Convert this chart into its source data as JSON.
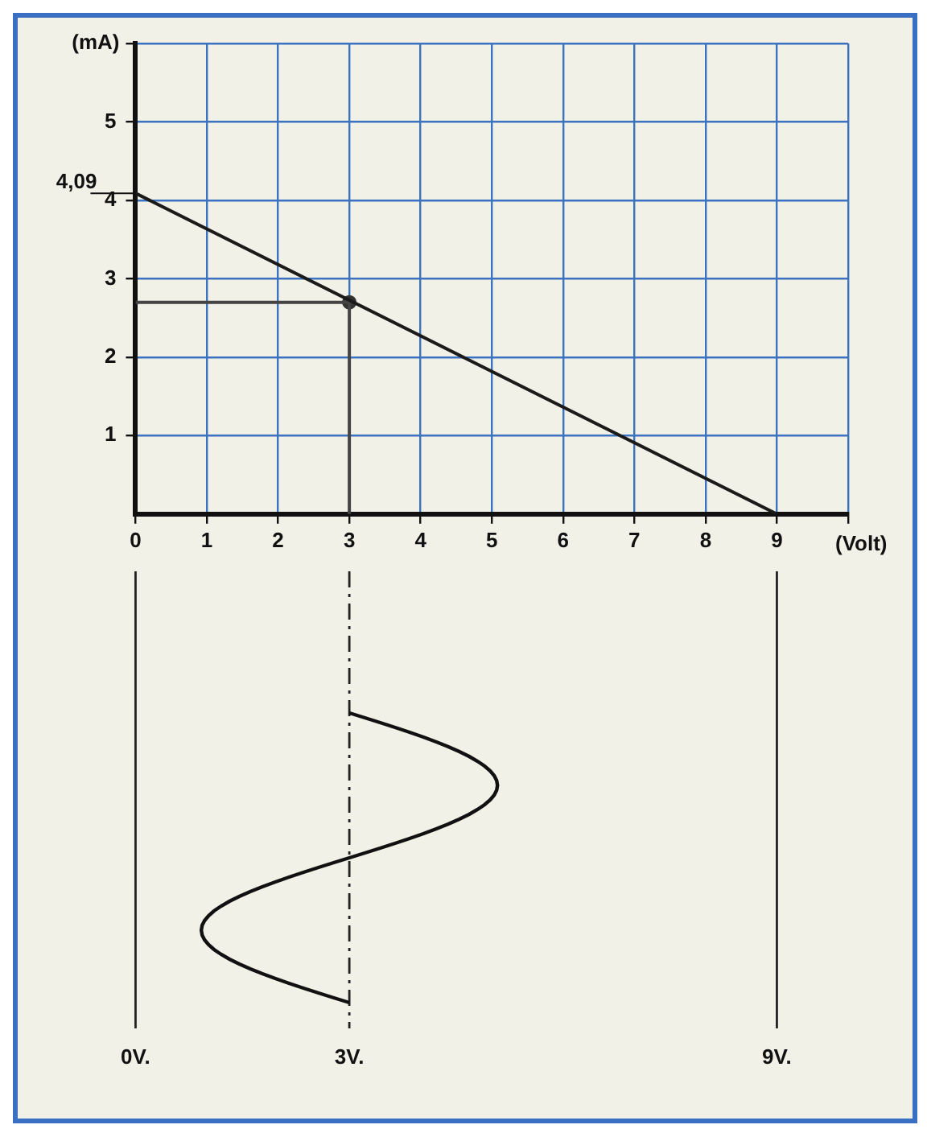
{
  "chart_data": {
    "type": "line",
    "xlabel": "(Volt)",
    "ylabel": "(mA)",
    "xlim": [
      0,
      10
    ],
    "ylim": [
      0,
      6
    ],
    "xticks": [
      0,
      1,
      2,
      3,
      4,
      5,
      6,
      7,
      8,
      9,
      {
        "value": 10,
        "label": null
      }
    ],
    "yticks": [
      1,
      2,
      3,
      4,
      5,
      {
        "value": 6,
        "label": null
      }
    ],
    "ref_lines": [
      {
        "axis": "y",
        "value": 4.09,
        "label": "4,09",
        "color": "#111111"
      }
    ],
    "grid": true,
    "legend": false,
    "series": [
      {
        "color": "#1a1a1a",
        "x": [
          0,
          9
        ],
        "values": [
          4.09,
          0
        ],
        "marker": "none"
      },
      {
        "color": "#444444",
        "x": [
          0,
          3,
          3
        ],
        "values": [
          2.7,
          2.7,
          0
        ],
        "marker": "none"
      },
      {
        "type": "scatter",
        "color": "#333333",
        "x": [
          3
        ],
        "values": [
          2.7
        ],
        "marker": "circle"
      }
    ],
    "annotations": [
      {
        "text": "0V.",
        "x": 0
      },
      {
        "text": "3V.",
        "x": 3
      },
      {
        "text": "9V.",
        "x": 9
      }
    ]
  }
}
